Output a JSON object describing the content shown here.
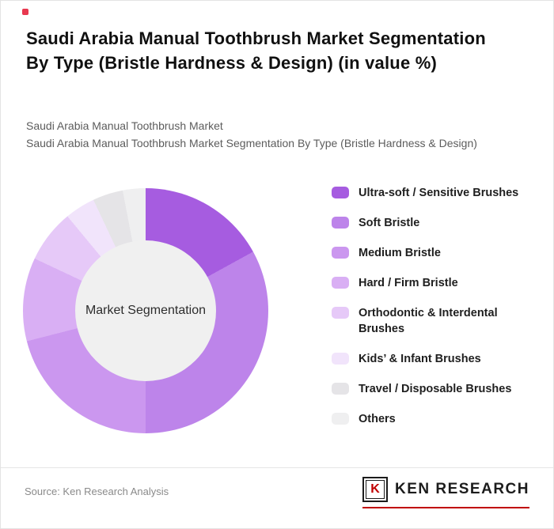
{
  "page": {
    "title": "Saudi Arabia Manual Toothbrush Market Segmentation By Type (Bristle Hardness & Design) (in value %)",
    "subtitle_line1": "Saudi Arabia Manual Toothbrush Market",
    "subtitle_line2": "Saudi Arabia Manual Toothbrush Market Segmentation By Type (Bristle Hardness & Design)",
    "source_text": "Source: Ken Research Analysis",
    "marker_color": "#e8384f"
  },
  "brand": {
    "logo_letter": "K",
    "logo_text": "KEN RESEARCH",
    "accent_color": "#c00000"
  },
  "chart_data": {
    "type": "pie",
    "style": "donut",
    "title": "Saudi Arabia Manual Toothbrush Market Segmentation By Type (Bristle Hardness & Design) (in value %)",
    "center_label": "Market Segmentation",
    "legend_position": "right",
    "start_angle_deg": 0,
    "direction": "clockwise",
    "categories": [
      "Ultra-soft / Sensitive Brushes",
      "Soft Bristle",
      "Medium Bristle",
      "Hard / Firm Bristle",
      "Orthodontic & Interdental Brushes",
      "Kids’ & Infant Brushes",
      "Travel / Disposable Brushes",
      "Others"
    ],
    "values": [
      17,
      33,
      21,
      11,
      7,
      4,
      4,
      3
    ],
    "colors": [
      "#a65ce0",
      "#bd84ea",
      "#cb97ef",
      "#d9aff4",
      "#e6c9f8",
      "#f1e4fb",
      "#e5e4e7",
      "#efeff0"
    ],
    "hole_color": "#f0f0f0"
  }
}
